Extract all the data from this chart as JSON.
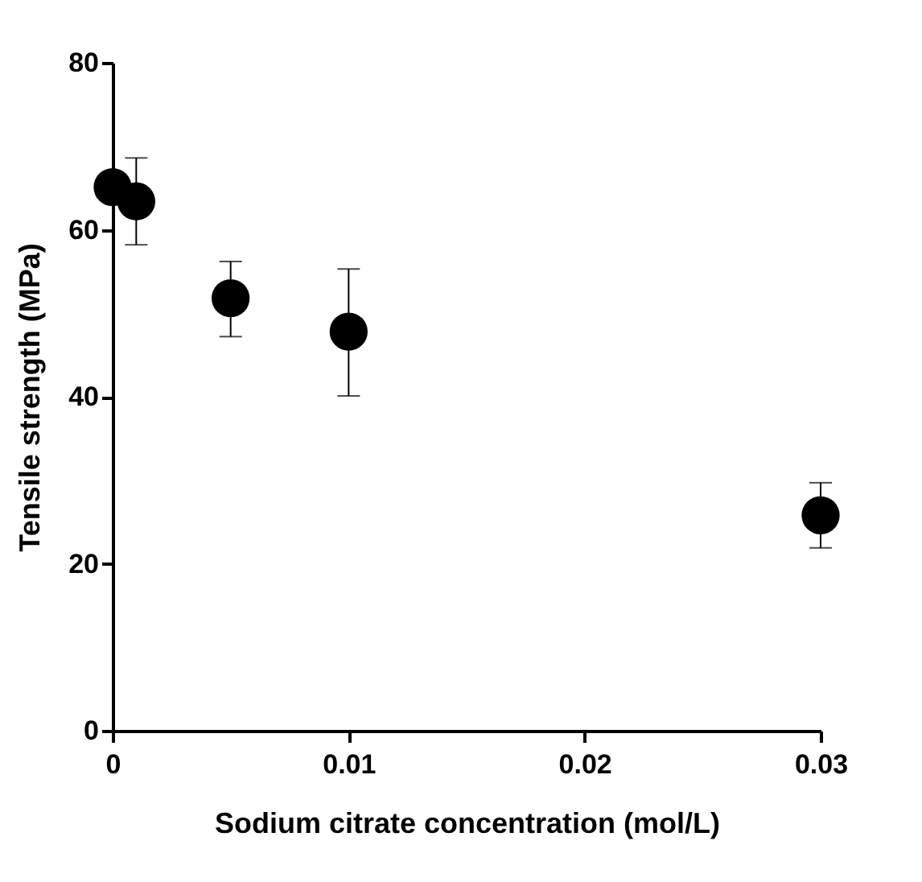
{
  "chart_data": {
    "type": "scatter",
    "xlabel": "Sodium citrate concentration  (mol/L)",
    "ylabel": "Tensile strength  (MPa)",
    "x": [
      0,
      0.001,
      0.005,
      0.01,
      0.03
    ],
    "series": [
      {
        "color": "#000000",
        "values": [
          65.1,
          63.4,
          51.8,
          47.8,
          25.8
        ],
        "errors": [
          null,
          [
            58.2,
            68.6
          ],
          [
            47.2,
            56.2
          ],
          [
            40.1,
            55.3
          ],
          [
            21.9,
            29.7
          ]
        ]
      }
    ],
    "xlim": [
      0,
      0.03
    ],
    "xticks": [
      0,
      0.01,
      0.02,
      0.03
    ],
    "ylim": [
      0,
      80
    ],
    "yticks": [
      0,
      20,
      40,
      60,
      80
    ],
    "marker": "circle",
    "grid": false
  }
}
